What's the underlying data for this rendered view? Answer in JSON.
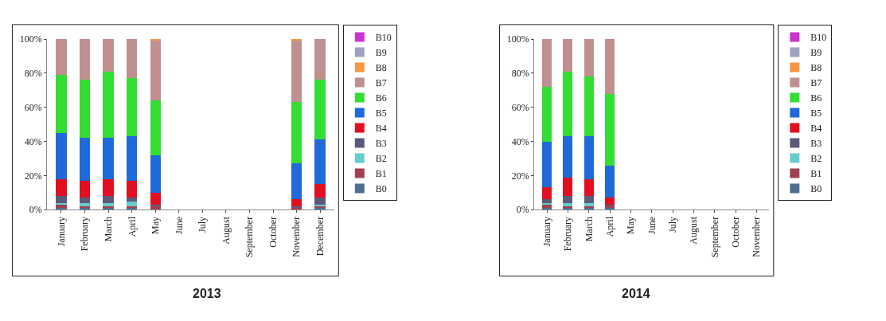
{
  "chart_data": [
    {
      "type": "bar",
      "stacked": true,
      "title": "2013",
      "categories": [
        "January",
        "February",
        "March",
        "April",
        "May",
        "June",
        "July",
        "August",
        "September",
        "October",
        "November",
        "December"
      ],
      "ylim": [
        0,
        100
      ],
      "yticks": [
        {
          "value": 0,
          "label": "0%"
        },
        {
          "value": 20,
          "label": "20%"
        },
        {
          "value": 40,
          "label": "40%"
        },
        {
          "value": 60,
          "label": "60%"
        },
        {
          "value": 80,
          "label": "80%"
        },
        {
          "value": 100,
          "label": "100%"
        }
      ],
      "legend": "right",
      "series": [
        {
          "name": "B0",
          "color": "#4f6f8f",
          "values": [
            1,
            1,
            1,
            1,
            0,
            null,
            null,
            null,
            null,
            null,
            0,
            1
          ]
        },
        {
          "name": "B1",
          "color": "#a04050",
          "values": [
            2,
            1,
            1,
            1,
            2,
            null,
            null,
            null,
            null,
            null,
            1,
            1
          ]
        },
        {
          "name": "B2",
          "color": "#66cccc",
          "values": [
            1,
            2,
            2,
            3,
            0,
            null,
            null,
            null,
            null,
            null,
            0,
            1
          ]
        },
        {
          "name": "B3",
          "color": "#5a5a7a",
          "values": [
            4,
            3,
            4,
            2,
            1,
            null,
            null,
            null,
            null,
            null,
            1,
            4
          ]
        },
        {
          "name": "B4",
          "color": "#e01020",
          "values": [
            10,
            10,
            10,
            10,
            7,
            null,
            null,
            null,
            null,
            null,
            4,
            8
          ]
        },
        {
          "name": "B5",
          "color": "#1f6ad8",
          "values": [
            27,
            25,
            24,
            26,
            22,
            null,
            null,
            null,
            null,
            null,
            21,
            26
          ]
        },
        {
          "name": "B6",
          "color": "#33dd33",
          "values": [
            34,
            34,
            39,
            34,
            32,
            null,
            null,
            null,
            null,
            null,
            36,
            35
          ]
        },
        {
          "name": "B7",
          "color": "#c09090",
          "values": [
            21,
            24,
            19,
            23,
            35,
            null,
            null,
            null,
            null,
            null,
            36,
            24
          ]
        },
        {
          "name": "B8",
          "color": "#f79646",
          "values": [
            0,
            0,
            0,
            0,
            1,
            null,
            null,
            null,
            null,
            null,
            1,
            0
          ]
        },
        {
          "name": "B9",
          "color": "#a0a0c0",
          "values": [
            0,
            0,
            0,
            0,
            0,
            null,
            null,
            null,
            null,
            null,
            0,
            0
          ]
        },
        {
          "name": "B10",
          "color": "#cc33cc",
          "values": [
            0,
            0,
            0,
            0,
            0,
            null,
            null,
            null,
            null,
            null,
            0,
            0
          ]
        }
      ]
    },
    {
      "type": "bar",
      "stacked": true,
      "title": "2014",
      "categories": [
        "January",
        "February",
        "March",
        "April",
        "May",
        "June",
        "July",
        "August",
        "September",
        "October",
        "November"
      ],
      "ylim": [
        0,
        100
      ],
      "yticks": [
        {
          "value": 0,
          "label": "0%"
        },
        {
          "value": 20,
          "label": "20%"
        },
        {
          "value": 40,
          "label": "40%"
        },
        {
          "value": 60,
          "label": "60%"
        },
        {
          "value": 80,
          "label": "80%"
        },
        {
          "value": 100,
          "label": "100%"
        }
      ],
      "legend": "right",
      "series": [
        {
          "name": "B0",
          "color": "#4f6f8f",
          "values": [
            1,
            1,
            1,
            1,
            null,
            null,
            null,
            null,
            null,
            null,
            null
          ]
        },
        {
          "name": "B1",
          "color": "#a04050",
          "values": [
            2,
            1,
            1,
            1,
            null,
            null,
            null,
            null,
            null,
            null,
            null
          ]
        },
        {
          "name": "B2",
          "color": "#66cccc",
          "values": [
            1,
            2,
            2,
            0,
            null,
            null,
            null,
            null,
            null,
            null,
            null
          ]
        },
        {
          "name": "B3",
          "color": "#5a5a7a",
          "values": [
            2,
            4,
            4,
            1,
            null,
            null,
            null,
            null,
            null,
            null,
            null
          ]
        },
        {
          "name": "B4",
          "color": "#e01020",
          "values": [
            7,
            11,
            10,
            4,
            null,
            null,
            null,
            null,
            null,
            null,
            null
          ]
        },
        {
          "name": "B5",
          "color": "#1f6ad8",
          "values": [
            27,
            24,
            25,
            19,
            null,
            null,
            null,
            null,
            null,
            null,
            null
          ]
        },
        {
          "name": "B6",
          "color": "#33dd33",
          "values": [
            32,
            38,
            35,
            42,
            null,
            null,
            null,
            null,
            null,
            null,
            null
          ]
        },
        {
          "name": "B7",
          "color": "#c09090",
          "values": [
            28,
            19,
            22,
            32,
            null,
            null,
            null,
            null,
            null,
            null,
            null
          ]
        },
        {
          "name": "B8",
          "color": "#f79646",
          "values": [
            0,
            0,
            0,
            0,
            null,
            null,
            null,
            null,
            null,
            null,
            null
          ]
        },
        {
          "name": "B9",
          "color": "#a0a0c0",
          "values": [
            0,
            0,
            0,
            0,
            null,
            null,
            null,
            null,
            null,
            null,
            null
          ]
        },
        {
          "name": "B10",
          "color": "#cc33cc",
          "values": [
            0,
            0,
            0,
            0,
            null,
            null,
            null,
            null,
            null,
            null,
            null
          ]
        }
      ]
    }
  ]
}
